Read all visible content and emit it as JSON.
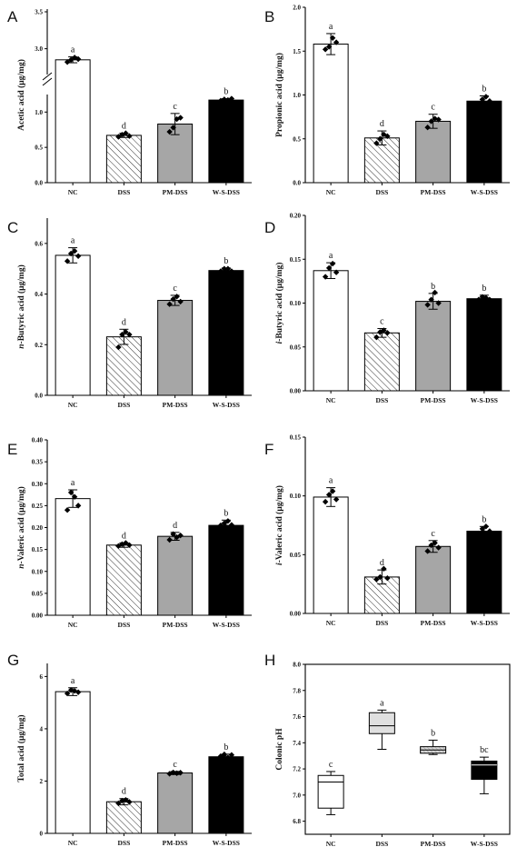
{
  "colors": {
    "NC": "#ffffff",
    "DSS": "hatch",
    "PM-DSS": "#a6a6a6",
    "W-S-DSS": "#000000",
    "axis": "#000000"
  },
  "chart_data": [
    {
      "panel": "A",
      "type": "bar",
      "categories": [
        "NC",
        "DSS",
        "PM-DSS",
        "W-S-DSS"
      ],
      "ylabel": "Acetic acid (μg/mg)",
      "axis_break": true,
      "lower_ticks": [
        "0.0",
        "0.5",
        "1.0"
      ],
      "upper_ticks": [
        "3.0",
        "3.5"
      ],
      "values": [
        2.85,
        0.67,
        0.83,
        1.17
      ],
      "errors": [
        0.04,
        0.03,
        0.15,
        0.02
      ],
      "points": [
        [
          2.82,
          2.85,
          2.88,
          2.86
        ],
        [
          0.65,
          0.68,
          0.7,
          0.66
        ],
        [
          0.72,
          0.78,
          0.9,
          0.92
        ],
        [
          1.16,
          1.18,
          1.17,
          1.19
        ]
      ],
      "letters": [
        "a",
        "d",
        "c",
        "b"
      ]
    },
    {
      "panel": "B",
      "type": "bar",
      "categories": [
        "NC",
        "DSS",
        "PM-DSS",
        "W-S-DSS"
      ],
      "ylabel": "Propionic acid (μg/mg)",
      "ylim": [
        0,
        2.0
      ],
      "ticks": [
        "0.0",
        "0.5",
        "1.0",
        "1.5",
        "2.0"
      ],
      "values": [
        1.58,
        0.51,
        0.7,
        0.93
      ],
      "errors": [
        0.12,
        0.08,
        0.08,
        0.06
      ],
      "points": [
        [
          1.52,
          1.55,
          1.65,
          1.6
        ],
        [
          0.45,
          0.5,
          0.55,
          0.53
        ],
        [
          0.63,
          0.7,
          0.73,
          0.72
        ],
        [
          0.9,
          0.95,
          0.98,
          0.93
        ]
      ],
      "letters": [
        "a",
        "d",
        "c",
        "b"
      ]
    },
    {
      "panel": "C",
      "type": "bar",
      "categories": [
        "NC",
        "DSS",
        "PM-DSS",
        "W-S-DSS"
      ],
      "ylabel": "n-Butyric acid (μg/mg)",
      "ylim": [
        0,
        0.7
      ],
      "ticks": [
        "0.0",
        "0.2",
        "0.4",
        "0.6"
      ],
      "values": [
        0.553,
        0.231,
        0.375,
        0.493
      ],
      "errors": [
        0.03,
        0.03,
        0.02,
        0.01
      ],
      "points": [
        [
          0.53,
          0.56,
          0.57,
          0.55
        ],
        [
          0.19,
          0.24,
          0.25,
          0.24
        ],
        [
          0.36,
          0.38,
          0.39,
          0.37
        ],
        [
          0.49,
          0.5,
          0.5,
          0.49
        ]
      ],
      "letters": [
        "a",
        "d",
        "c",
        "b"
      ]
    },
    {
      "panel": "D",
      "type": "bar",
      "categories": [
        "NC",
        "DSS",
        "PM-DSS",
        "W-S-DSS"
      ],
      "ylabel": "i-Butyric acid (μg/mg)",
      "ylim": [
        0,
        0.2
      ],
      "ticks": [
        "0.00",
        "0.05",
        "0.10",
        "0.15",
        "0.20"
      ],
      "values": [
        0.137,
        0.066,
        0.102,
        0.105
      ],
      "errors": [
        0.009,
        0.005,
        0.009,
        0.004
      ],
      "points": [
        [
          0.13,
          0.14,
          0.145,
          0.135
        ],
        [
          0.061,
          0.067,
          0.069,
          0.066
        ],
        [
          0.098,
          0.104,
          0.112,
          0.1
        ],
        [
          0.104,
          0.107,
          0.106,
          0.104
        ]
      ],
      "letters": [
        "a",
        "c",
        "b",
        "b"
      ]
    },
    {
      "panel": "E",
      "type": "bar",
      "categories": [
        "NC",
        "DSS",
        "PM-DSS",
        "W-S-DSS"
      ],
      "ylabel": "n-Valeric acid (μg/mg)",
      "ylim": [
        0,
        0.4
      ],
      "ticks": [
        "0.00",
        "0.05",
        "0.10",
        "0.15",
        "0.20",
        "0.25",
        "0.30",
        "0.35",
        "0.40"
      ],
      "values": [
        0.266,
        0.16,
        0.18,
        0.205
      ],
      "errors": [
        0.02,
        0.005,
        0.009,
        0.012
      ],
      "points": [
        [
          0.24,
          0.28,
          0.27,
          0.25
        ],
        [
          0.158,
          0.162,
          0.165,
          0.16
        ],
        [
          0.172,
          0.185,
          0.178,
          0.182
        ],
        [
          0.205,
          0.21,
          0.215,
          0.206
        ]
      ],
      "letters": [
        "a",
        "d",
        "d",
        "b"
      ]
    },
    {
      "panel": "F",
      "type": "bar",
      "categories": [
        "NC",
        "DSS",
        "PM-DSS",
        "W-S-DSS"
      ],
      "ylabel": "i-Valeric acid (μg/mg)",
      "ylim": [
        0,
        0.15
      ],
      "ticks": [
        "0.00",
        "0.05",
        "0.10",
        "0.15"
      ],
      "values": [
        0.099,
        0.031,
        0.057,
        0.07
      ],
      "errors": [
        0.008,
        0.006,
        0.005,
        0.004
      ],
      "points": [
        [
          0.095,
          0.101,
          0.104,
          0.097
        ],
        [
          0.029,
          0.031,
          0.038,
          0.03
        ],
        [
          0.053,
          0.058,
          0.06,
          0.056
        ],
        [
          0.068,
          0.072,
          0.074,
          0.07
        ]
      ],
      "letters": [
        "a",
        "d",
        "c",
        "b"
      ]
    },
    {
      "panel": "G",
      "type": "bar",
      "categories": [
        "NC",
        "DSS",
        "PM-DSS",
        "W-S-DSS"
      ],
      "ylabel": "Total acid (μg/mg)",
      "ylim": [
        0,
        6.5
      ],
      "ticks": [
        "0",
        "2",
        "4",
        "6"
      ],
      "values": [
        5.42,
        1.21,
        2.31,
        2.93
      ],
      "errors": [
        0.15,
        0.12,
        0.06,
        0.1
      ],
      "points": [
        [
          5.35,
          5.48,
          5.45,
          5.4
        ],
        [
          1.15,
          1.25,
          1.28,
          1.2
        ],
        [
          2.28,
          2.33,
          2.3,
          2.32
        ],
        [
          2.95,
          3.02,
          2.9,
          3.0
        ]
      ],
      "letters": [
        "a",
        "d",
        "c",
        "b"
      ]
    },
    {
      "panel": "H",
      "type": "box",
      "categories": [
        "NC",
        "DSS",
        "PM-DSS",
        "W-S-DSS"
      ],
      "ylabel": "Colonic pH",
      "ylim": [
        6.7,
        8.0
      ],
      "ticks": [
        "6.8",
        "7.0",
        "7.2",
        "7.4",
        "7.6",
        "7.8",
        "8.0"
      ],
      "boxes": [
        {
          "min": 6.85,
          "q1": 6.9,
          "median": 7.1,
          "q3": 7.15,
          "max": 7.18
        },
        {
          "min": 7.35,
          "q1": 7.47,
          "median": 7.53,
          "q3": 7.63,
          "max": 7.65
        },
        {
          "min": 7.31,
          "q1": 7.32,
          "median": 7.345,
          "q3": 7.37,
          "max": 7.42
        },
        {
          "min": 7.01,
          "q1": 7.12,
          "median": 7.23,
          "q3": 7.26,
          "max": 7.29
        }
      ],
      "letters": [
        "c",
        "a",
        "b",
        "bc"
      ]
    }
  ]
}
